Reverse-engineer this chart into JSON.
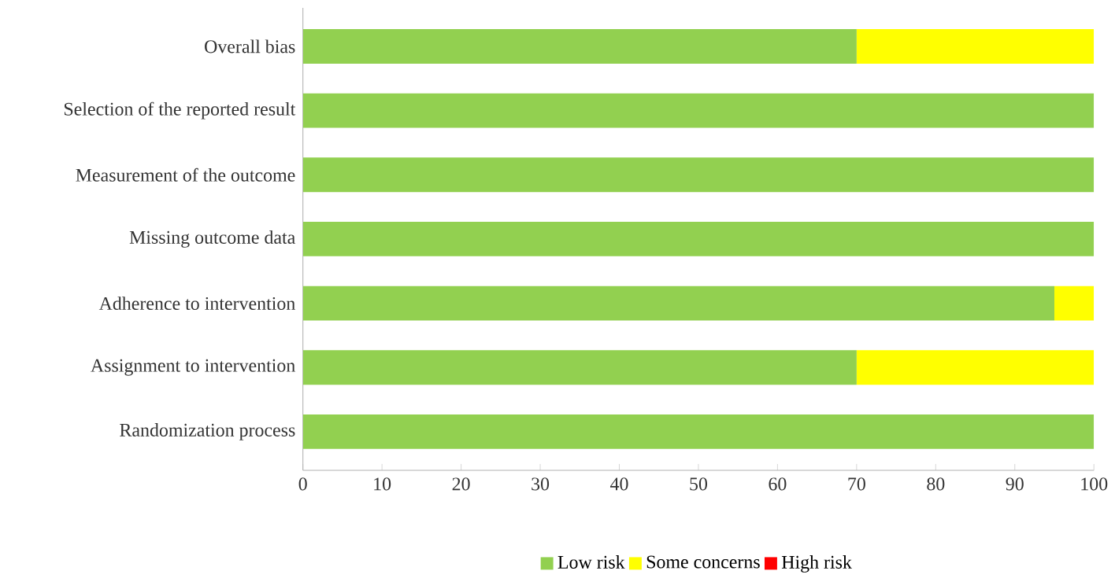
{
  "chart_data": {
    "type": "bar",
    "orientation": "horizontal",
    "stacked": true,
    "categories": [
      "Overall bias",
      "Selection of the reported result",
      "Measurement of the outcome",
      "Missing outcome data",
      "Adherence to intervention",
      "Assignment to intervention",
      "Randomization process"
    ],
    "series": [
      {
        "name": "Low risk",
        "color": "#92d050",
        "values": [
          70,
          100,
          100,
          100,
          95,
          70,
          100
        ]
      },
      {
        "name": "Some concerns",
        "color": "#ffff00",
        "values": [
          30,
          0,
          0,
          0,
          5,
          30,
          0
        ]
      },
      {
        "name": "High risk",
        "color": "#ff0000",
        "values": [
          0,
          0,
          0,
          0,
          0,
          0,
          0
        ]
      }
    ],
    "xlim": [
      0,
      100
    ],
    "xticks": [
      0,
      10,
      20,
      30,
      40,
      50,
      60,
      70,
      80,
      90,
      100
    ],
    "grid": false,
    "legend": "bottom"
  }
}
